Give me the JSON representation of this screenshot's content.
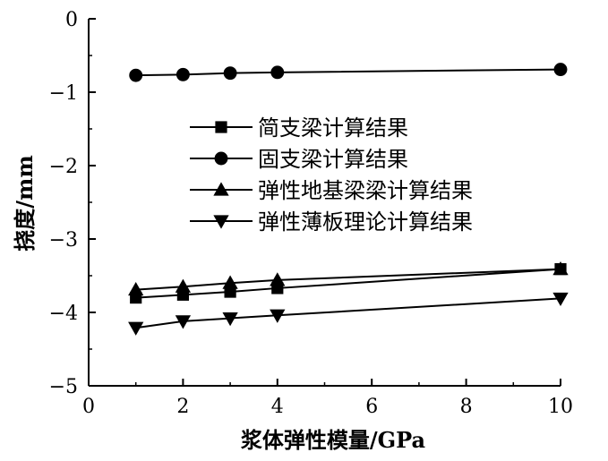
{
  "chart_data": {
    "type": "line",
    "xlabel": "浆体弹性模量/GPa",
    "ylabel": "挠度/mm",
    "xlim": [
      0,
      10
    ],
    "ylim": [
      -5,
      0
    ],
    "x_ticks": [
      "0",
      "2",
      "4",
      "6",
      "8",
      "10"
    ],
    "y_ticks": [
      "0",
      "−1",
      "−2",
      "−3",
      "−4",
      "−5"
    ],
    "grid": false,
    "legend_position": "center",
    "series": [
      {
        "name": "简支梁计算结果",
        "marker": "square",
        "x": [
          1,
          2,
          3,
          4,
          10
        ],
        "y": [
          -3.8,
          -3.76,
          -3.72,
          -3.67,
          -3.41
        ]
      },
      {
        "name": "固支梁计算结果",
        "marker": "circle",
        "x": [
          1,
          2,
          3,
          4,
          10
        ],
        "y": [
          -0.77,
          -0.76,
          -0.74,
          -0.73,
          -0.69
        ]
      },
      {
        "name": "弹性地基梁梁计算结果",
        "marker": "triangle-up",
        "x": [
          1,
          2,
          3,
          4,
          10
        ],
        "y": [
          -3.69,
          -3.65,
          -3.6,
          -3.56,
          -3.41
        ]
      },
      {
        "name": "弹性薄板理论计算结果",
        "marker": "triangle-down",
        "x": [
          1,
          2,
          3,
          4,
          10
        ],
        "y": [
          -4.21,
          -4.12,
          -4.08,
          -4.04,
          -3.81
        ]
      }
    ]
  }
}
